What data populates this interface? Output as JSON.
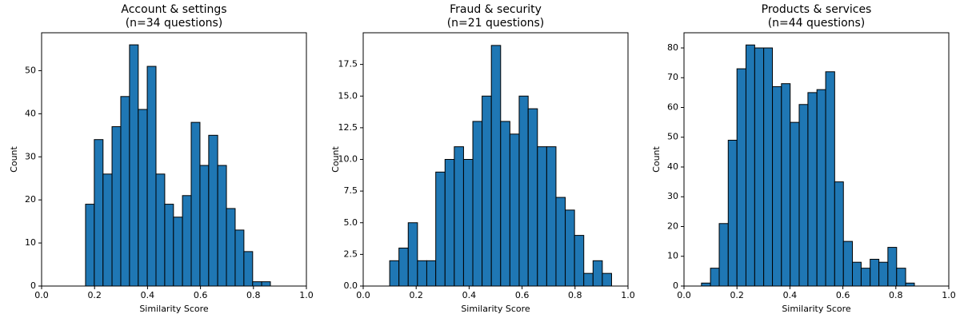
{
  "chart_data": [
    {
      "type": "histogram",
      "title": "Account & settings",
      "subtitle": "(n=34 questions)",
      "x_label": "Similarity Score",
      "y_label": "Count",
      "color": "#1f77b4",
      "bins": [
        0.166,
        0.199,
        0.232,
        0.266,
        0.299,
        0.332,
        0.365,
        0.399,
        0.432,
        0.465,
        0.498,
        0.532,
        0.565,
        0.598,
        0.631,
        0.665,
        0.698,
        0.731,
        0.764,
        0.797,
        0.831,
        0.864
      ],
      "values": [
        19,
        34,
        26,
        37,
        44,
        56,
        41,
        51,
        26,
        19,
        16,
        21,
        38,
        28,
        35,
        28,
        18,
        13,
        8,
        1,
        1
      ],
      "xlim": [
        0,
        1
      ],
      "ylim": [
        0,
        58.8
      ],
      "xticks": [
        {
          "value": 0,
          "label": "0.0"
        },
        {
          "value": 0.2,
          "label": "0.2"
        },
        {
          "value": 0.4,
          "label": "0.4"
        },
        {
          "value": 0.6,
          "label": "0.6"
        },
        {
          "value": 0.8,
          "label": "0.8"
        },
        {
          "value": 1,
          "label": "1.0"
        }
      ],
      "yticks": [
        0,
        10,
        20,
        30,
        40,
        50
      ]
    },
    {
      "type": "histogram",
      "title": "Fraud & security",
      "subtitle": "(n=21 questions)",
      "x_label": "Similarity Score",
      "y_label": "Count",
      "color": "#1f77b4",
      "bins": [
        0.1,
        0.135,
        0.17,
        0.205,
        0.24,
        0.274,
        0.309,
        0.344,
        0.379,
        0.414,
        0.449,
        0.484,
        0.519,
        0.554,
        0.589,
        0.623,
        0.658,
        0.693,
        0.728,
        0.763,
        0.798,
        0.833,
        0.868,
        0.903,
        0.938
      ],
      "values": [
        2,
        3,
        5,
        2,
        2,
        9,
        10,
        11,
        10,
        13,
        15,
        19,
        13,
        12,
        15,
        14,
        11,
        11,
        7,
        6,
        4,
        1,
        2,
        1
      ],
      "xlim": [
        0,
        1
      ],
      "ylim": [
        0,
        20
      ],
      "xticks": [
        {
          "value": 0,
          "label": "0.0"
        },
        {
          "value": 0.2,
          "label": "0.2"
        },
        {
          "value": 0.4,
          "label": "0.4"
        },
        {
          "value": 0.6,
          "label": "0.6"
        },
        {
          "value": 0.8,
          "label": "0.8"
        },
        {
          "value": 1,
          "label": "1.0"
        }
      ],
      "yticks": [
        {
          "value": 0,
          "label": "0.0"
        },
        {
          "value": 2.5,
          "label": "2.5"
        },
        {
          "value": 5,
          "label": "5.0"
        },
        {
          "value": 7.5,
          "label": "7.5"
        },
        {
          "value": 10,
          "label": "10.0"
        },
        {
          "value": 12.5,
          "label": "12.5"
        },
        {
          "value": 15,
          "label": "15.0"
        },
        {
          "value": 17.5,
          "label": "17.5"
        }
      ]
    },
    {
      "type": "histogram",
      "title": "Products & services",
      "subtitle": "(n=44 questions)",
      "x_label": "Similarity Score",
      "y_label": "Count",
      "color": "#1f77b4",
      "bins": [
        0.066,
        0.1,
        0.133,
        0.167,
        0.2,
        0.234,
        0.267,
        0.301,
        0.334,
        0.368,
        0.401,
        0.435,
        0.468,
        0.502,
        0.535,
        0.569,
        0.602,
        0.636,
        0.669,
        0.703,
        0.736,
        0.77,
        0.803,
        0.837,
        0.87
      ],
      "values": [
        1,
        6,
        21,
        49,
        73,
        81,
        80,
        80,
        67,
        68,
        55,
        61,
        65,
        66,
        72,
        35,
        15,
        8,
        6,
        9,
        8,
        13,
        6,
        1
      ],
      "xlim": [
        0,
        1
      ],
      "ylim": [
        0,
        85.1
      ],
      "xticks": [
        {
          "value": 0,
          "label": "0.0"
        },
        {
          "value": 0.2,
          "label": "0.2"
        },
        {
          "value": 0.4,
          "label": "0.4"
        },
        {
          "value": 0.6,
          "label": "0.6"
        },
        {
          "value": 0.8,
          "label": "0.8"
        },
        {
          "value": 1,
          "label": "1.0"
        }
      ],
      "yticks": [
        0,
        10,
        20,
        30,
        40,
        50,
        60,
        70,
        80
      ]
    }
  ]
}
